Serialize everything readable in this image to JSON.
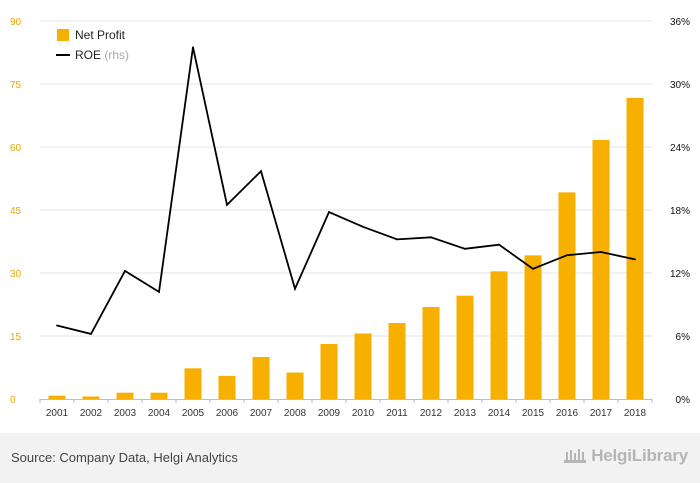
{
  "chart_data": {
    "type": "bar",
    "title": "",
    "xlabel": "",
    "ylabel": "",
    "categories": [
      "2001",
      "2002",
      "2003",
      "2004",
      "2005",
      "2006",
      "2007",
      "2008",
      "2009",
      "2010",
      "2011",
      "2012",
      "2013",
      "2014",
      "2015",
      "2016",
      "2017",
      "2018"
    ],
    "series": [
      {
        "name": "Net Profit",
        "type": "bar",
        "axis": "left",
        "color": "#f7b000",
        "values": [
          0.8,
          0.6,
          1.5,
          1.5,
          7.3,
          5.5,
          10.0,
          6.3,
          13.1,
          15.6,
          18.1,
          21.9,
          24.6,
          30.4,
          34.2,
          49.2,
          61.7,
          71.7
        ]
      },
      {
        "name": "ROE",
        "name_suffix": "(rhs)",
        "type": "line",
        "axis": "right",
        "color": "#000000",
        "values": [
          7.0,
          6.2,
          12.2,
          10.2,
          33.5,
          18.5,
          21.7,
          10.5,
          17.8,
          16.4,
          15.2,
          15.4,
          14.3,
          14.7,
          12.4,
          13.7,
          14.0,
          13.3
        ]
      }
    ],
    "ylim_left": [
      0,
      90
    ],
    "yticks_left": [
      "0",
      "15",
      "30",
      "45",
      "60",
      "75",
      "90"
    ],
    "ylim_right": [
      0,
      36
    ],
    "yticks_right": [
      "0%",
      "6%",
      "12%",
      "18%",
      "24%",
      "30%",
      "36%"
    ],
    "grid": true,
    "legend_placement": "top-left",
    "axis_label_color_left": "#e8a800"
  },
  "footer": {
    "source": "Source: Company Data, Helgi Analytics",
    "logo": "HelgiLibrary"
  }
}
